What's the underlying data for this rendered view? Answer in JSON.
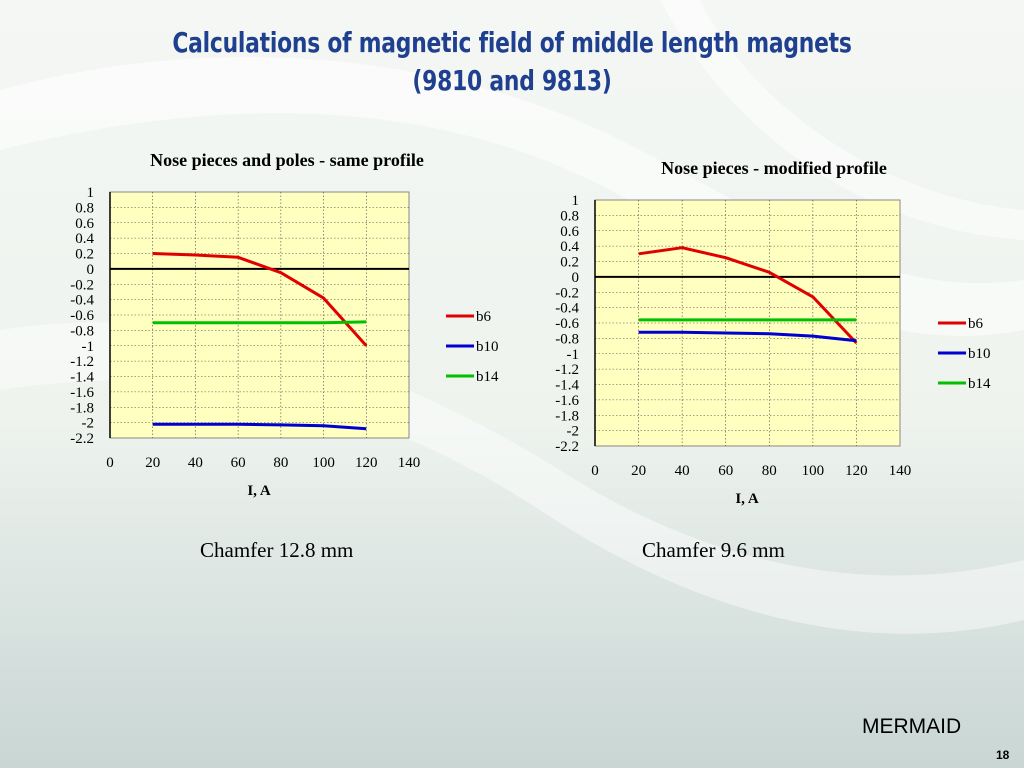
{
  "slide": {
    "title_line1": "Calculations of magnetic field of middle length magnets",
    "title_line2": "(9810 and 9813)",
    "footer_brand": "MERMAID",
    "page_number": "18"
  },
  "colors": {
    "title": "#1f3f8f",
    "plot_bg": "#ffffc0",
    "b6": "#e00000",
    "b10": "#0000d0",
    "b14": "#00c000"
  },
  "charts": [
    {
      "caption": "Chamfer 12.8 mm"
    },
    {
      "caption": "Chamfer 9.6 mm"
    }
  ],
  "chart_data": [
    {
      "type": "line",
      "title": "Nose pieces and poles - same profile",
      "xlabel": "I, A",
      "ylabel": "",
      "xlim": [
        0,
        140
      ],
      "ylim": [
        -2.2,
        1
      ],
      "x_ticks": [
        "0",
        "20",
        "40",
        "60",
        "80",
        "100",
        "120",
        "140"
      ],
      "y_ticks": [
        "1",
        "0.8",
        "0.6",
        "0.4",
        "0.2",
        "0",
        "-0.2",
        "-0.4",
        "-0.6",
        "-0.8",
        "-1",
        "-1.2",
        "-1.4",
        "-1.6",
        "-1.8",
        "-2",
        "-2.2"
      ],
      "grid": true,
      "legend_position": "right",
      "series": [
        {
          "name": "b6",
          "x": [
            20,
            40,
            60,
            80,
            100,
            120
          ],
          "y": [
            0.2,
            0.18,
            0.15,
            -0.05,
            -0.38,
            -1.0
          ]
        },
        {
          "name": "b10",
          "x": [
            20,
            40,
            60,
            80,
            100,
            120
          ],
          "y": [
            -2.02,
            -2.02,
            -2.02,
            -2.03,
            -2.04,
            -2.08
          ]
        },
        {
          "name": "b14",
          "x": [
            20,
            40,
            60,
            80,
            100,
            120
          ],
          "y": [
            -0.7,
            -0.7,
            -0.7,
            -0.7,
            -0.7,
            -0.69
          ]
        }
      ]
    },
    {
      "type": "line",
      "title": "Nose pieces - modified profile",
      "xlabel": "I, A",
      "ylabel": "",
      "xlim": [
        0,
        140
      ],
      "ylim": [
        -2.2,
        1
      ],
      "x_ticks": [
        "0",
        "20",
        "40",
        "60",
        "80",
        "100",
        "120",
        "140"
      ],
      "y_ticks": [
        "1",
        "0.8",
        "0.6",
        "0.4",
        "0.2",
        "0",
        "-0.2",
        "-0.4",
        "-0.6",
        "-0.8",
        "-1",
        "-1.2",
        "-1.4",
        "-1.6",
        "-1.8",
        "-2",
        "-2.2"
      ],
      "grid": true,
      "legend_position": "right",
      "series": [
        {
          "name": "b6",
          "x": [
            20,
            40,
            60,
            80,
            100,
            120
          ],
          "y": [
            0.3,
            0.38,
            0.25,
            0.06,
            -0.26,
            -0.86
          ]
        },
        {
          "name": "b10",
          "x": [
            20,
            40,
            60,
            80,
            100,
            120
          ],
          "y": [
            -0.72,
            -0.72,
            -0.73,
            -0.74,
            -0.77,
            -0.83
          ]
        },
        {
          "name": "b14",
          "x": [
            20,
            40,
            60,
            80,
            100,
            120
          ],
          "y": [
            -0.56,
            -0.56,
            -0.56,
            -0.56,
            -0.56,
            -0.56
          ]
        }
      ]
    }
  ]
}
